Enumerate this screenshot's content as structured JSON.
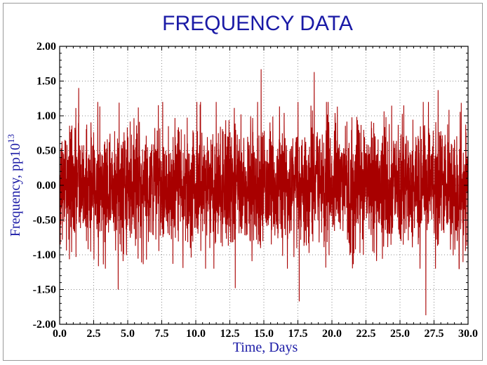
{
  "chart_data": {
    "type": "line",
    "title": "FREQUENCY DATA",
    "xlabel": "Time, Days",
    "ylabel_main": "Frequency,  pp10",
    "ylabel_exponent": "13",
    "xlim": [
      0,
      30
    ],
    "ylim": [
      -2,
      2
    ],
    "x_ticks": [
      "0.0",
      "2.5",
      "5.0",
      "7.5",
      "10.0",
      "12.5",
      "15.0",
      "17.5",
      "20.0",
      "22.5",
      "25.0",
      "27.5",
      "30.0"
    ],
    "y_ticks": [
      "2.00",
      "1.50",
      "1.00",
      "0.50",
      "0.00",
      "-0.50",
      "-1.00",
      "-1.50",
      "-2.00"
    ],
    "grid": true,
    "series": [
      {
        "color": "#a80000",
        "sampling_interval_days": 0.01,
        "noise_rms": 0.44,
        "notable_extremes": [
          {
            "x": 1.4,
            "y": 1.4
          },
          {
            "x": 4.3,
            "y": -1.5
          },
          {
            "x": 12.9,
            "y": -1.48
          },
          {
            "x": 14.8,
            "y": 1.67
          },
          {
            "x": 17.6,
            "y": -1.67
          },
          {
            "x": 18.7,
            "y": 1.63
          },
          {
            "x": 26.9,
            "y": -1.87
          },
          {
            "x": 27.8,
            "y": 1.37
          }
        ]
      }
    ]
  }
}
